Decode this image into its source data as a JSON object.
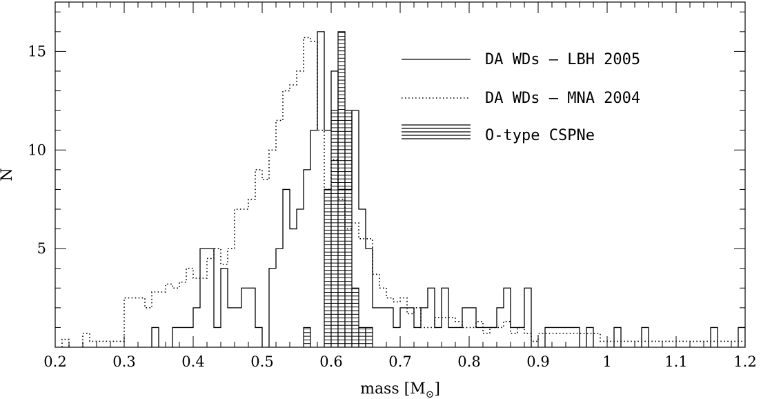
{
  "chart_data": {
    "type": "bar",
    "xlabel": "mass [M",
    "xlabel_sub": "⊙",
    "xlabel_close": "]",
    "ylabel": "N",
    "xlim": [
      0.2,
      1.2
    ],
    "ylim": [
      0,
      17.5
    ],
    "x_ticks": [
      0.2,
      0.3,
      0.4,
      0.5,
      0.6,
      0.7,
      0.8,
      0.9,
      1.0,
      1.1,
      1.2
    ],
    "x_tick_labels": [
      "0.2",
      "0.3",
      "0.4",
      "0.5",
      "0.6",
      "0.7",
      "0.8",
      "0.9",
      "1",
      "1.1",
      "1.2"
    ],
    "y_ticks": [
      5,
      10,
      15
    ],
    "y_tick_labels": [
      "5",
      "10",
      "15"
    ],
    "bin_width": 0.01,
    "legend": {
      "placement": "top-right"
    },
    "series": [
      {
        "name": "DA WDs – LBH 2005",
        "style": "solid",
        "bins": [
          [
            0.34,
            1
          ],
          [
            0.37,
            1
          ],
          [
            0.38,
            1
          ],
          [
            0.39,
            1
          ],
          [
            0.4,
            2
          ],
          [
            0.41,
            5
          ],
          [
            0.42,
            5
          ],
          [
            0.43,
            1
          ],
          [
            0.44,
            4
          ],
          [
            0.45,
            2
          ],
          [
            0.46,
            2
          ],
          [
            0.47,
            3
          ],
          [
            0.48,
            3
          ],
          [
            0.49,
            1
          ],
          [
            0.51,
            4
          ],
          [
            0.52,
            5
          ],
          [
            0.53,
            8
          ],
          [
            0.54,
            6
          ],
          [
            0.55,
            7
          ],
          [
            0.56,
            9
          ],
          [
            0.57,
            11
          ],
          [
            0.58,
            16
          ],
          [
            0.59,
            11
          ],
          [
            0.6,
            14
          ],
          [
            0.61,
            8
          ],
          [
            0.62,
            8
          ],
          [
            0.63,
            12
          ],
          [
            0.64,
            7
          ],
          [
            0.65,
            5
          ],
          [
            0.66,
            2
          ],
          [
            0.67,
            2
          ],
          [
            0.68,
            2
          ],
          [
            0.69,
            1
          ],
          [
            0.7,
            2
          ],
          [
            0.71,
            2
          ],
          [
            0.72,
            1
          ],
          [
            0.73,
            2
          ],
          [
            0.74,
            3
          ],
          [
            0.75,
            1
          ],
          [
            0.76,
            3
          ],
          [
            0.77,
            1
          ],
          [
            0.78,
            1
          ],
          [
            0.79,
            2
          ],
          [
            0.8,
            2
          ],
          [
            0.81,
            1
          ],
          [
            0.82,
            1
          ],
          [
            0.83,
            1
          ],
          [
            0.84,
            2
          ],
          [
            0.85,
            3
          ],
          [
            0.86,
            1
          ],
          [
            0.87,
            1
          ],
          [
            0.88,
            3
          ],
          [
            0.91,
            1
          ],
          [
            0.92,
            1
          ],
          [
            0.93,
            1
          ],
          [
            0.94,
            1
          ],
          [
            0.95,
            1
          ],
          [
            0.97,
            1
          ],
          [
            1.01,
            1
          ],
          [
            1.05,
            1
          ],
          [
            1.15,
            1
          ],
          [
            1.19,
            1
          ]
        ]
      },
      {
        "name": "DA WDs – MNA 2004",
        "style": "dotted",
        "bins": [
          [
            0.21,
            0.4
          ],
          [
            0.24,
            0.7
          ],
          [
            0.25,
            0.3
          ],
          [
            0.26,
            0.3
          ],
          [
            0.27,
            0.3
          ],
          [
            0.28,
            0.3
          ],
          [
            0.29,
            0.3
          ],
          [
            0.3,
            2.5
          ],
          [
            0.31,
            2.5
          ],
          [
            0.32,
            2.5
          ],
          [
            0.33,
            2.0
          ],
          [
            0.34,
            2.8
          ],
          [
            0.35,
            2.8
          ],
          [
            0.36,
            3.2
          ],
          [
            0.37,
            3.0
          ],
          [
            0.38,
            3.3
          ],
          [
            0.39,
            4.0
          ],
          [
            0.4,
            3.5
          ],
          [
            0.41,
            3.5
          ],
          [
            0.42,
            4.5
          ],
          [
            0.43,
            5.0
          ],
          [
            0.44,
            4.2
          ],
          [
            0.45,
            5.0
          ],
          [
            0.46,
            7.0
          ],
          [
            0.47,
            7.0
          ],
          [
            0.48,
            7.5
          ],
          [
            0.49,
            9.0
          ],
          [
            0.5,
            8.5
          ],
          [
            0.51,
            10.0
          ],
          [
            0.52,
            11.5
          ],
          [
            0.53,
            13.0
          ],
          [
            0.54,
            13.3
          ],
          [
            0.55,
            14.0
          ],
          [
            0.56,
            15.7
          ],
          [
            0.57,
            15.5
          ],
          [
            0.58,
            11.0
          ],
          [
            0.59,
            8.0
          ],
          [
            0.6,
            9.5
          ],
          [
            0.61,
            7.5
          ],
          [
            0.62,
            6.0
          ],
          [
            0.63,
            6.3
          ],
          [
            0.64,
            5.5
          ],
          [
            0.65,
            5.5
          ],
          [
            0.66,
            3.7
          ],
          [
            0.67,
            3.0
          ],
          [
            0.68,
            2.5
          ],
          [
            0.69,
            2.3
          ],
          [
            0.7,
            2.5
          ],
          [
            0.71,
            1.7
          ],
          [
            0.72,
            2.0
          ],
          [
            0.73,
            1.0
          ],
          [
            0.74,
            1.0
          ],
          [
            0.75,
            1.5
          ],
          [
            0.76,
            1.5
          ],
          [
            0.77,
            1.5
          ],
          [
            0.78,
            1.3
          ],
          [
            0.79,
            1.0
          ],
          [
            0.8,
            1.0
          ],
          [
            0.81,
            1.3
          ],
          [
            0.82,
            0.7
          ],
          [
            0.83,
            1.0
          ],
          [
            0.84,
            1.0
          ],
          [
            0.85,
            1.3
          ],
          [
            0.86,
            0.7
          ],
          [
            0.87,
            1.0
          ],
          [
            0.88,
            0.7
          ],
          [
            0.89,
            0.3
          ],
          [
            0.9,
            0.7
          ],
          [
            0.91,
            0.7
          ],
          [
            0.92,
            0.7
          ],
          [
            0.93,
            0.7
          ],
          [
            0.94,
            0.7
          ],
          [
            0.95,
            0.7
          ],
          [
            0.96,
            0.7
          ],
          [
            0.97,
            0.7
          ],
          [
            0.98,
            0.7
          ],
          [
            0.99,
            0.3
          ],
          [
            1.0,
            0.3
          ],
          [
            1.01,
            0.3
          ],
          [
            1.02,
            0.3
          ],
          [
            1.03,
            0.3
          ],
          [
            1.04,
            0.3
          ],
          [
            1.05,
            0.3
          ],
          [
            1.06,
            0.3
          ],
          [
            1.07,
            0.3
          ],
          [
            1.08,
            0.3
          ],
          [
            1.09,
            0.3
          ],
          [
            1.1,
            0.3
          ],
          [
            1.11,
            0.3
          ],
          [
            1.12,
            0.3
          ],
          [
            1.13,
            0.3
          ],
          [
            1.14,
            0.3
          ],
          [
            1.15,
            0.3
          ],
          [
            1.16,
            0.3
          ],
          [
            1.17,
            0.3
          ],
          [
            1.18,
            0.3
          ],
          [
            1.19,
            0.3
          ]
        ]
      },
      {
        "name": "O-type CSPNe",
        "style": "hatched",
        "bins": [
          [
            0.56,
            1
          ],
          [
            0.59,
            8
          ],
          [
            0.6,
            12
          ],
          [
            0.61,
            16
          ],
          [
            0.62,
            12
          ],
          [
            0.63,
            3
          ],
          [
            0.64,
            1
          ],
          [
            0.65,
            1
          ]
        ]
      }
    ]
  }
}
